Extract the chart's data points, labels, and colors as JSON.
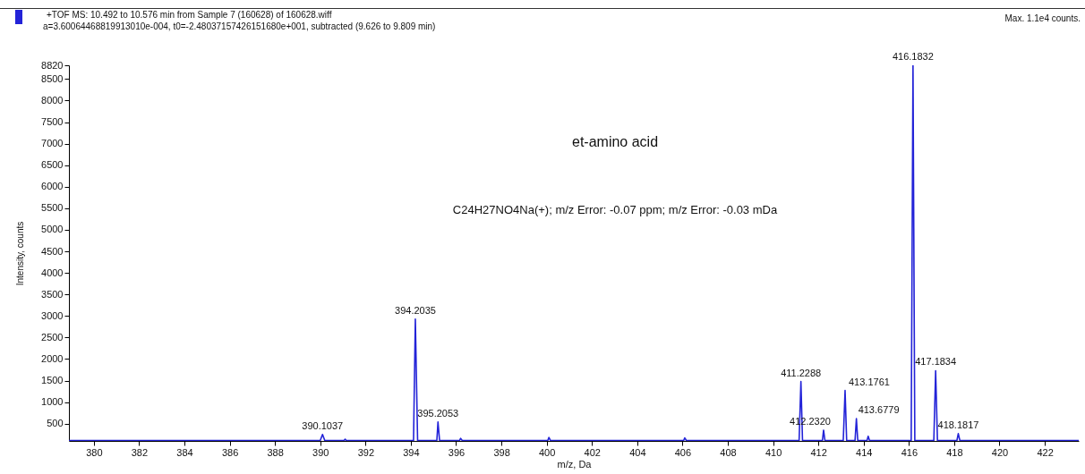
{
  "chart_data": {
    "type": "line",
    "title": "+TOF MS: 10.492 to 10.576 min from Sample 7 (160628) of 160628.wiff",
    "subtitle": "a=3.60064468819913010e-004, t0=-2.48037157426151680e+001, subtracted (9.626 to 9.809 min)",
    "xlabel": "m/z, Da",
    "ylabel": "Intensity, counts",
    "xlim": [
      378.9,
      423.5
    ],
    "ylim": [
      100,
      8820
    ],
    "xticks": [
      380,
      382,
      384,
      386,
      388,
      390,
      392,
      394,
      396,
      398,
      400,
      402,
      404,
      406,
      408,
      410,
      412,
      414,
      416,
      418,
      420,
      422
    ],
    "yticks": [
      500,
      1000,
      1500,
      2000,
      2500,
      3000,
      3500,
      4000,
      4500,
      5000,
      5500,
      6000,
      6500,
      7000,
      7500,
      8000,
      8500,
      8820
    ],
    "grid": false,
    "marker": "none",
    "line_style": "solid",
    "series": [
      {
        "color": "#2323d8",
        "x": [
          378.9,
          390.0,
          390.1,
          390.2,
          391.05,
          391.1,
          391.15,
          394.12,
          394.2,
          394.3,
          395.15,
          395.2,
          395.27,
          396.15,
          396.2,
          396.27,
          400.05,
          400.1,
          400.17,
          406.05,
          406.1,
          406.17,
          411.15,
          411.23,
          411.3,
          412.18,
          412.23,
          412.29,
          413.1,
          413.18,
          413.25,
          413.62,
          413.68,
          413.74,
          414.15,
          414.2,
          414.26,
          416.1,
          416.18,
          416.26,
          417.1,
          417.18,
          417.26,
          418.12,
          418.18,
          418.25,
          423.5
        ],
        "values": [
          110,
          110,
          250,
          110,
          110,
          140,
          110,
          110,
          2930,
          110,
          110,
          540,
          110,
          110,
          160,
          110,
          110,
          180,
          110,
          110,
          170,
          110,
          110,
          1480,
          110,
          110,
          350,
          110,
          110,
          1270,
          110,
          110,
          620,
          110,
          110,
          210,
          110,
          110,
          8820,
          110,
          110,
          1730,
          110,
          110,
          270,
          110,
          110
        ]
      }
    ],
    "annotations": [
      "Max. 1.1e4 counts.",
      "et-amino acid",
      "C24H27NO4Na(+); m/z Error: -0.07 ppm; m/z Error: -0.03 mDa",
      {
        "text": "416.1832",
        "x": 416.18,
        "y": 8820
      },
      {
        "text": "394.2035",
        "x": 394.2,
        "y": 2930
      },
      {
        "text": "395.2053",
        "x": 395.2,
        "y": 540
      },
      {
        "text": "390.1037",
        "x": 390.1,
        "y": 250
      },
      {
        "text": "411.2288",
        "x": 411.23,
        "y": 1480
      },
      {
        "text": "412.2320",
        "x": 412.23,
        "y": 350
      },
      {
        "text": "413.1761",
        "x": 413.18,
        "y": 1270
      },
      {
        "text": "413.6779",
        "x": 413.68,
        "y": 620
      },
      {
        "text": "417.1834",
        "x": 417.18,
        "y": 1730
      },
      {
        "text": "418.1817",
        "x": 418.18,
        "y": 270
      }
    ]
  }
}
